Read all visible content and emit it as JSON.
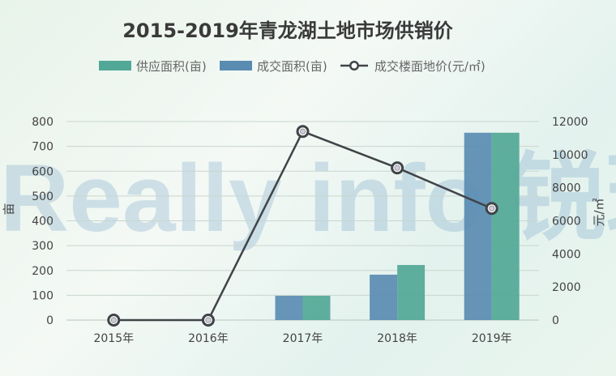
{
  "chart_data": {
    "type": "bar+line",
    "title": "2015-2019年青龙湖土地市场供销价",
    "categories": [
      "2015年",
      "2016年",
      "2017年",
      "2018年",
      "2019年"
    ],
    "series": [
      {
        "name": "供应面积(亩)",
        "type": "bar",
        "axis": "left",
        "color": "#52a896",
        "values": [
          0,
          0,
          98,
          222,
          755
        ]
      },
      {
        "name": "成交面积(亩)",
        "type": "bar",
        "axis": "left",
        "color": "#5a8cb2",
        "values": [
          0,
          0,
          98,
          183,
          755
        ]
      },
      {
        "name": "成交楼面地价(元/㎡)",
        "type": "line",
        "axis": "right",
        "color": "#404448",
        "values": [
          0,
          0,
          11400,
          9200,
          6750
        ]
      }
    ],
    "ylabel": "亩",
    "y2label": "元/㎡",
    "ylim": [
      0,
      800
    ],
    "y2lim": [
      0,
      12000
    ],
    "yticks": [
      "0",
      "100",
      "200",
      "300",
      "400",
      "500",
      "600",
      "700",
      "800"
    ],
    "y2ticks": [
      "0",
      "2000",
      "4000",
      "6000",
      "8000",
      "10000",
      "12000"
    ],
    "grid": true,
    "legend": "top"
  },
  "watermark": "Really info 锐理数据"
}
